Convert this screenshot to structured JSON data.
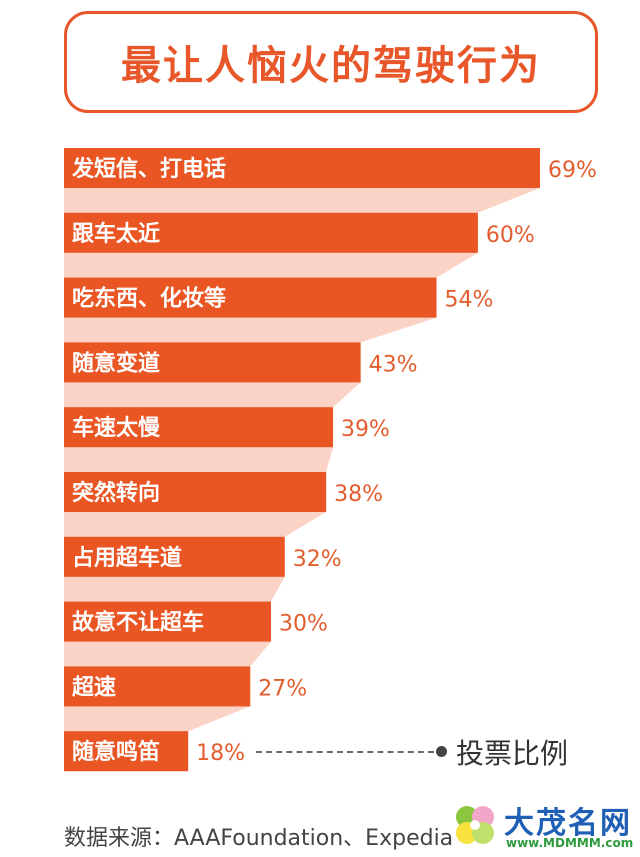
{
  "chart_data": {
    "type": "bar",
    "orientation": "horizontal",
    "title": "最让人恼火的驾驶行为",
    "categories": [
      "发短信、打电话",
      "跟车太近",
      "吃东西、化妆等",
      "随意变道",
      "车速太慢",
      "突然转向",
      "占用超车道",
      "故意不让超车",
      "超速",
      "随意鸣笛"
    ],
    "values": [
      69,
      60,
      54,
      43,
      39,
      38,
      32,
      30,
      27,
      18
    ],
    "value_labels": [
      "69%",
      "60%",
      "54%",
      "43%",
      "39%",
      "38%",
      "32%",
      "30%",
      "27%",
      "18%"
    ],
    "legend": "投票比例",
    "xlim": [
      0,
      69
    ],
    "colors": {
      "bar": "#ea5524",
      "band": "#fbd3c6",
      "label": "#e35d2e"
    }
  },
  "source": "数据来源：AAAFoundation、Expedia",
  "watermark": {
    "name": "大茂名网",
    "url": "www.MDMMM.com"
  }
}
